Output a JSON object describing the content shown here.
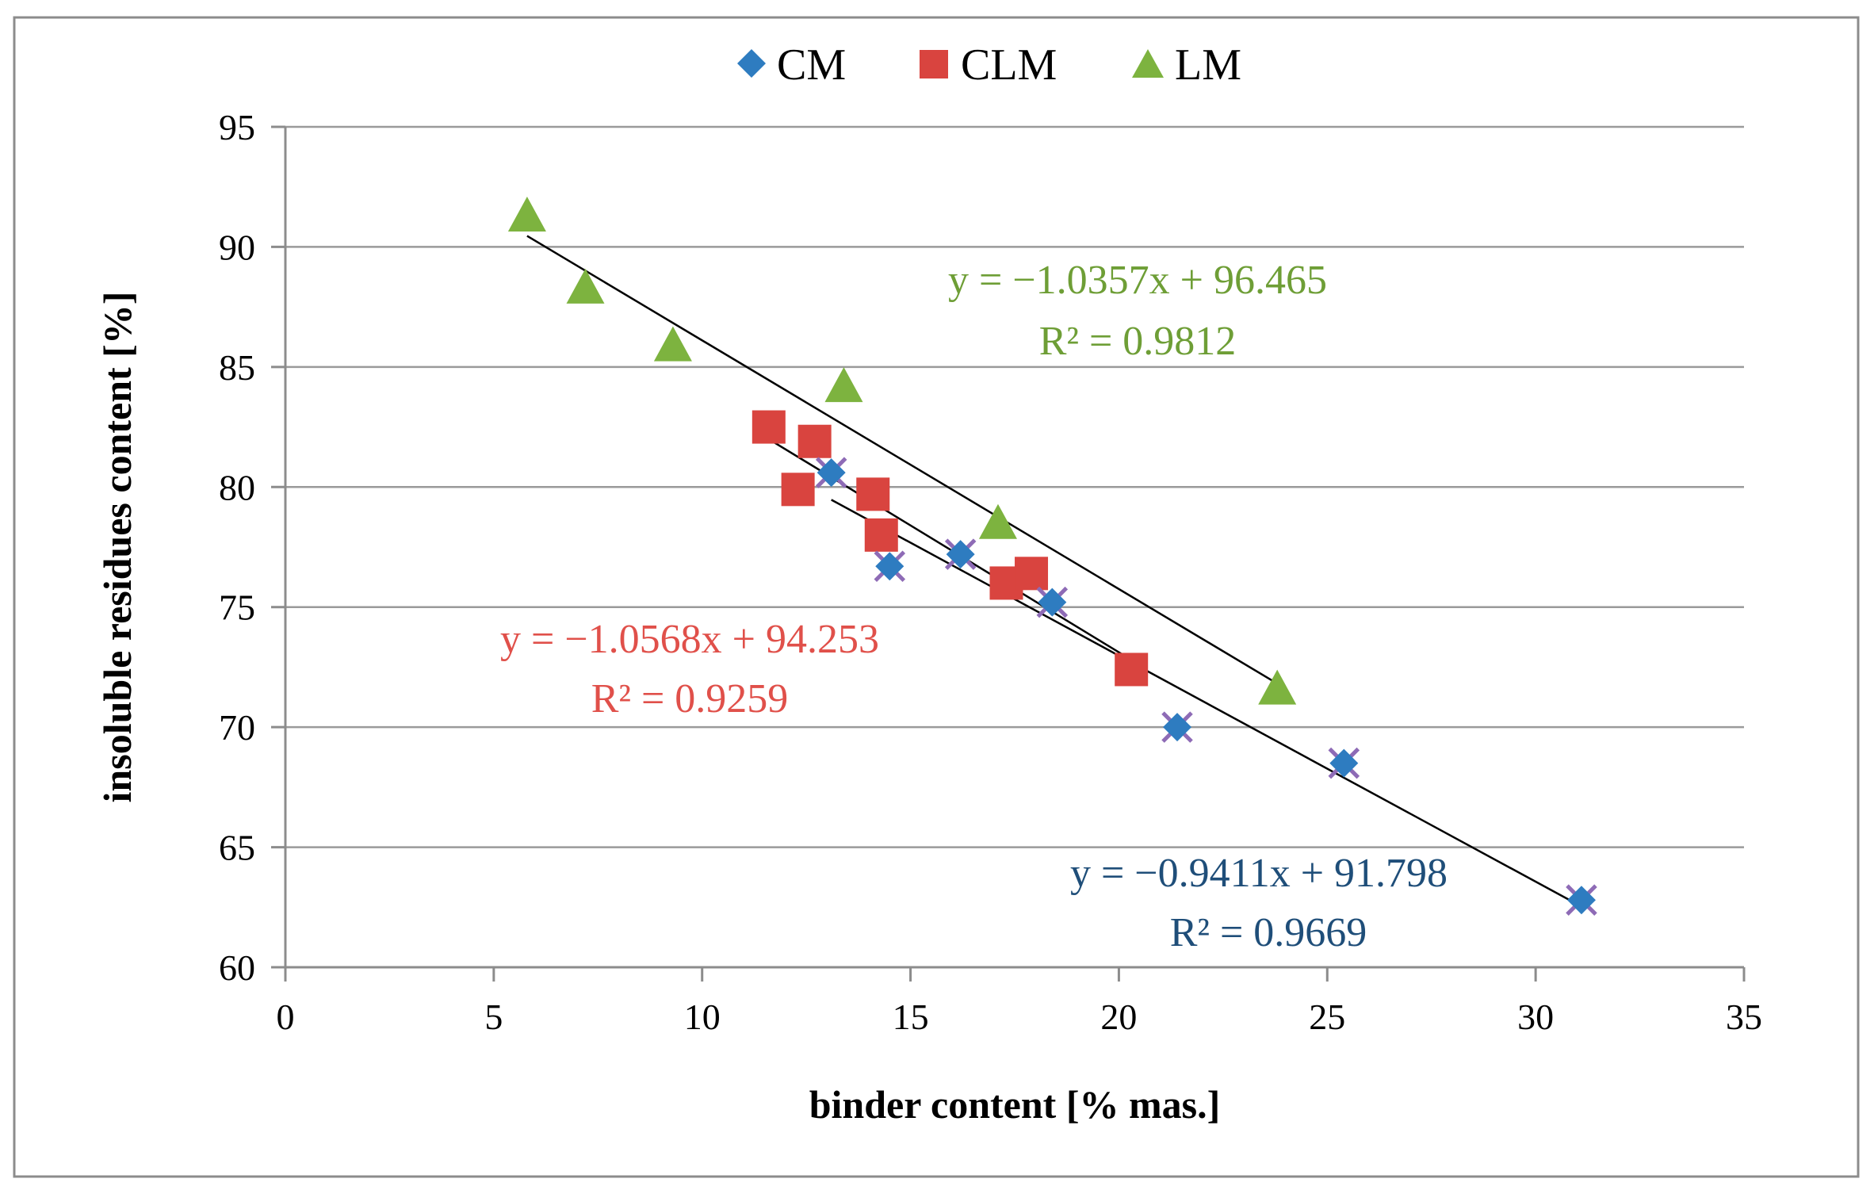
{
  "chart_data": {
    "type": "scatter",
    "title": "",
    "xlabel": "binder content [% mas.]",
    "ylabel": "insoluble residues content [%]",
    "xlim": [
      0,
      35
    ],
    "ylim": [
      60,
      95
    ],
    "xticks": [
      0,
      5,
      10,
      15,
      20,
      25,
      30,
      35
    ],
    "yticks": [
      60,
      65,
      70,
      75,
      80,
      85,
      90,
      95
    ],
    "grid": "horizontal",
    "legend_position": "top",
    "series": [
      {
        "name": "CM",
        "marker": "diamond",
        "color": "#2E7CC0",
        "overlay_color": "#8E6BB6",
        "x": [
          13.1,
          14.5,
          16.2,
          18.4,
          21.4,
          25.4,
          31.1
        ],
        "y": [
          80.6,
          76.7,
          77.2,
          75.2,
          70.0,
          68.5,
          62.8
        ],
        "trendline": {
          "slope": -0.9411,
          "intercept": 91.798,
          "x_range": [
            13.1,
            31.1
          ],
          "equation": "y = −0.9411x + 91.798",
          "r2": "R² = 0.9669",
          "label_color": "#1F4E79"
        }
      },
      {
        "name": "CLM",
        "marker": "square",
        "color": "#D9443F",
        "x": [
          11.6,
          12.3,
          12.7,
          14.1,
          14.3,
          17.3,
          17.9,
          20.3
        ],
        "y": [
          82.5,
          79.9,
          81.9,
          79.7,
          78.0,
          76.0,
          76.4,
          72.4
        ],
        "trendline": {
          "slope": -1.0568,
          "intercept": 94.253,
          "x_range": [
            11.6,
            20.3
          ],
          "equation": "y = −1.0568x + 94.253",
          "r2": "R² = 0.9259",
          "label_color": "#E0504A"
        }
      },
      {
        "name": "LM",
        "marker": "triangle",
        "color": "#7DB33F",
        "x": [
          5.8,
          7.2,
          9.3,
          13.4,
          17.1,
          23.8
        ],
        "y": [
          91.3,
          88.3,
          85.9,
          84.2,
          78.5,
          71.6
        ],
        "trendline": {
          "slope": -1.0357,
          "intercept": 96.465,
          "x_range": [
            5.8,
            23.8
          ],
          "equation": "y = −1.0357x + 96.465",
          "r2": "R² = 0.9812",
          "label_color": "#6E9E36"
        }
      }
    ]
  }
}
